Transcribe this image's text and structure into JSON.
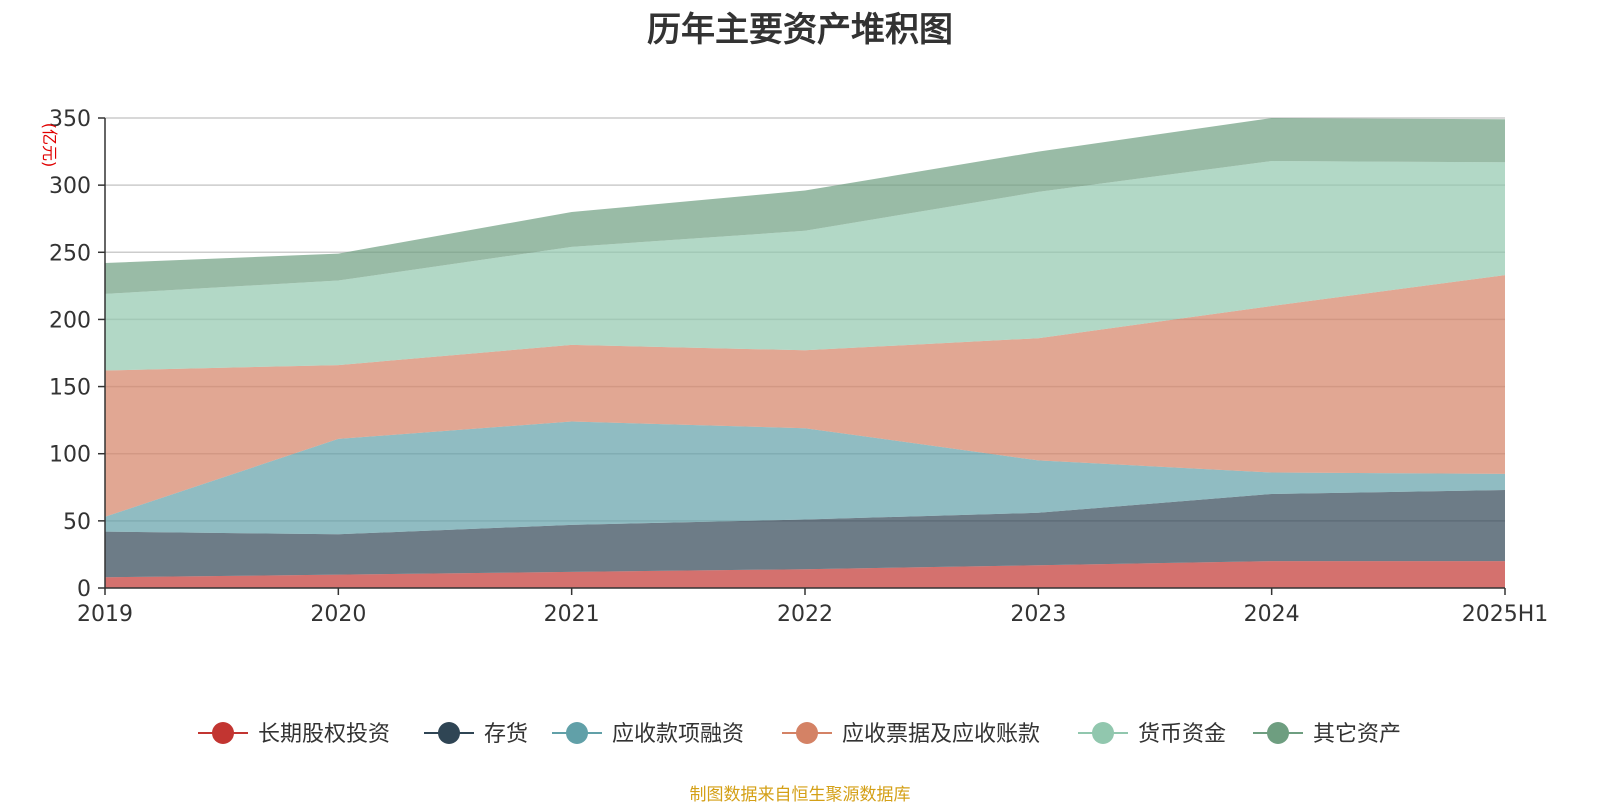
{
  "chart_data": {
    "type": "area",
    "stacked": true,
    "title": "历年主要资产堆积图",
    "unit_label": "(亿元)",
    "x": [
      "2019",
      "2020",
      "2021",
      "2022",
      "2023",
      "2024",
      "2025H1"
    ],
    "ylim": [
      0,
      350
    ],
    "yticks": [
      0,
      50,
      100,
      150,
      200,
      250,
      300,
      350
    ],
    "grid": true,
    "legend_position": "bottom",
    "series": [
      {
        "name": "长期股权投资",
        "color": "#c23531",
        "values": [
          8,
          10,
          12,
          14,
          17,
          20,
          20
        ]
      },
      {
        "name": "存货",
        "color": "#2f4554",
        "values": [
          34,
          30,
          35,
          37,
          39,
          50,
          53
        ]
      },
      {
        "name": "应收款项融资",
        "color": "#61a0a8",
        "values": [
          11,
          71,
          77,
          68,
          39,
          16,
          12
        ]
      },
      {
        "name": "应收票据及应收账款",
        "color": "#d48265",
        "values": [
          109,
          55,
          57,
          58,
          91,
          124,
          148
        ]
      },
      {
        "name": "货币资金",
        "color": "#91c7ae",
        "values": [
          57,
          63,
          73,
          89,
          109,
          108,
          84
        ]
      },
      {
        "name": "其它资产",
        "color": "#6e9e80",
        "values": [
          23,
          20,
          26,
          30,
          30,
          32,
          32
        ]
      }
    ]
  },
  "source_note": "制图数据来自恒生聚源数据库"
}
